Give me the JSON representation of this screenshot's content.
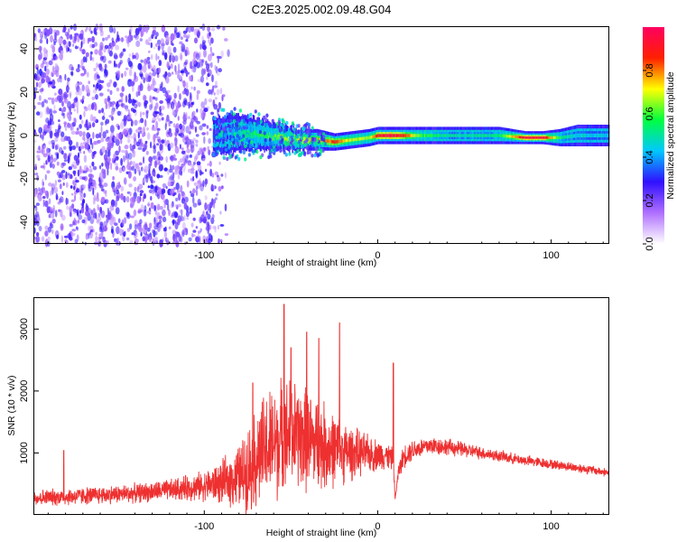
{
  "chart_data": [
    {
      "type": "heatmap",
      "title": "C2E3.2025.002.09.48.G04",
      "xlabel": "Height of straight line (km)",
      "ylabel": "Frequency (Hz)",
      "xlim": [
        -198,
        133
      ],
      "ylim": [
        -50,
        50
      ],
      "x_ticks": [
        -100,
        0,
        100
      ],
      "y_ticks": [
        -40,
        -20,
        0,
        20,
        40
      ],
      "colorbar": {
        "label": "Normalized spectral amplitude",
        "range": [
          0,
          1
        ],
        "ticks": [
          0.0,
          0.2,
          0.4,
          0.6,
          0.8
        ],
        "tick_labels": [
          "0.0",
          "0.2",
          "0.4",
          "0.6",
          "0.8"
        ],
        "colors": [
          "#ffffff",
          "#b070ff",
          "#3010ff",
          "#00c8ff",
          "#00ff40",
          "#ffff00",
          "#ff2000",
          "#ff0060"
        ]
      },
      "noise_region": {
        "x_range": [
          -198,
          -87
        ],
        "freq_range": [
          -50,
          50
        ],
        "amplitude": 0.25
      },
      "signal_band": [
        {
          "x": -95,
          "freq": 0,
          "amplitude": 0.3,
          "width": 8
        },
        {
          "x": -85,
          "freq": 1,
          "amplitude": 0.4,
          "width": 9
        },
        {
          "x": -75,
          "freq": 1,
          "amplitude": 0.55,
          "width": 8
        },
        {
          "x": -65,
          "freq": 0,
          "amplitude": 0.6,
          "width": 7
        },
        {
          "x": -55,
          "freq": -1,
          "amplitude": 0.65,
          "width": 6
        },
        {
          "x": -45,
          "freq": -2,
          "amplitude": 0.7,
          "width": 5
        },
        {
          "x": -35,
          "freq": -2,
          "amplitude": 0.75,
          "width": 5
        },
        {
          "x": -25,
          "freq": -3,
          "amplitude": 0.85,
          "width": 4
        },
        {
          "x": -15,
          "freq": -2,
          "amplitude": 0.7,
          "width": 4
        },
        {
          "x": -5,
          "freq": -1,
          "amplitude": 0.65,
          "width": 4
        },
        {
          "x": 0,
          "freq": 0,
          "amplitude": 0.9,
          "width": 4
        },
        {
          "x": 8,
          "freq": 0,
          "amplitude": 0.95,
          "width": 4
        },
        {
          "x": 15,
          "freq": 0,
          "amplitude": 0.85,
          "width": 4
        },
        {
          "x": 25,
          "freq": 0,
          "amplitude": 0.6,
          "width": 4
        },
        {
          "x": 40,
          "freq": 0,
          "amplitude": 0.5,
          "width": 4
        },
        {
          "x": 55,
          "freq": 0,
          "amplitude": 0.5,
          "width": 4
        },
        {
          "x": 70,
          "freq": 0,
          "amplitude": 0.55,
          "width": 4
        },
        {
          "x": 85,
          "freq": -1,
          "amplitude": 0.95,
          "width": 3
        },
        {
          "x": 95,
          "freq": -1,
          "amplitude": 0.95,
          "width": 3
        },
        {
          "x": 105,
          "freq": -1,
          "amplitude": 0.55,
          "width": 4
        },
        {
          "x": 115,
          "freq": 0,
          "amplitude": 0.45,
          "width": 5
        },
        {
          "x": 125,
          "freq": 0,
          "amplitude": 0.45,
          "width": 5
        },
        {
          "x": 133,
          "freq": 0,
          "amplitude": 0.45,
          "width": 5
        }
      ]
    },
    {
      "type": "line",
      "xlabel": "Height of straight line (km)",
      "ylabel": "SNR (10 * v/v)",
      "xlim": [
        -198,
        133
      ],
      "ylim": [
        0,
        3500
      ],
      "x_ticks": [
        -100,
        0,
        100
      ],
      "y_ticks": [
        1000,
        2000,
        3000
      ],
      "series": [
        {
          "color": "#ee3030",
          "x": [
            -198,
            -180,
            -160,
            -140,
            -120,
            -100,
            -90,
            -80,
            -75,
            -70,
            -65,
            -60,
            -55,
            -50,
            -45,
            -40,
            -35,
            -30,
            -25,
            -20,
            -15,
            -10,
            -5,
            0,
            5,
            9,
            10,
            12,
            15,
            20,
            30,
            40,
            50,
            60,
            70,
            80,
            90,
            100,
            110,
            120,
            133
          ],
          "values": [
            280,
            290,
            320,
            350,
            400,
            470,
            520,
            620,
            750,
            900,
            1050,
            1150,
            1250,
            1300,
            1250,
            1200,
            1150,
            1100,
            1050,
            1020,
            1000,
            990,
            980,
            970,
            960,
            900,
            250,
            700,
            950,
            1050,
            1120,
            1100,
            1050,
            1000,
            950,
            900,
            860,
            820,
            780,
            740,
            680
          ],
          "spread": [
            150,
            160,
            170,
            180,
            200,
            280,
            400,
            600,
            800,
            950,
            1050,
            1100,
            1100,
            1050,
            1000,
            950,
            900,
            800,
            700,
            600,
            500,
            420,
            350,
            300,
            260,
            200,
            0,
            150,
            220,
            200,
            180,
            160,
            140,
            120,
            110,
            100,
            100,
            90,
            90,
            90,
            80
          ],
          "peaks": [
            {
              "x": -181,
              "value": 1040
            },
            {
              "x": -72,
              "value": 2130
            },
            {
              "x": -54,
              "value": 3400
            },
            {
              "x": -50,
              "value": 2700
            },
            {
              "x": -41,
              "value": 2950
            },
            {
              "x": -34,
              "value": 2850
            },
            {
              "x": -22,
              "value": 3100
            },
            {
              "x": 9,
              "value": 2450
            }
          ]
        }
      ]
    }
  ]
}
